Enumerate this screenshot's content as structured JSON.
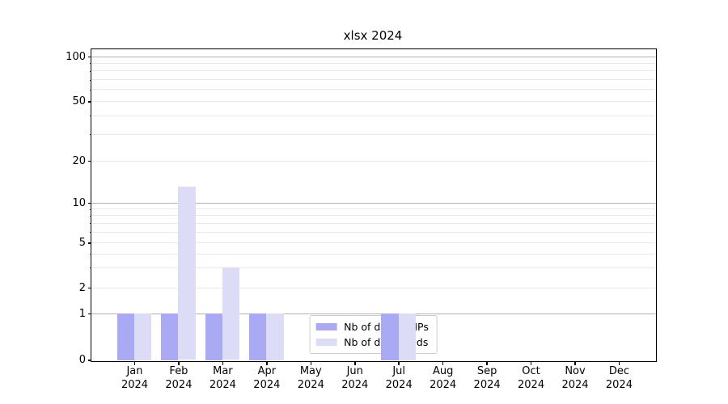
{
  "chart_data": {
    "type": "bar",
    "title": "xlsx 2024",
    "x_year": "2024",
    "categories": [
      "Jan",
      "Feb",
      "Mar",
      "Apr",
      "May",
      "Jun",
      "Jul",
      "Aug",
      "Sep",
      "Oct",
      "Nov",
      "Dec"
    ],
    "series": [
      {
        "name": "Nb of distinct IPs",
        "color": "#a9a9f4",
        "values": [
          1,
          1,
          1,
          1,
          0,
          0,
          1,
          0,
          0,
          0,
          0,
          0
        ]
      },
      {
        "name": "Nb of downloads",
        "color": "#dcdcf6",
        "values": [
          1,
          13,
          3,
          1,
          0,
          0,
          1,
          0,
          0,
          0,
          0,
          0
        ]
      }
    ],
    "y_axis": {
      "scale": "log-like",
      "range": [
        0,
        100
      ],
      "ticks": [
        100,
        50,
        20,
        10,
        5,
        2,
        1,
        0
      ],
      "tick_labels": [
        "100",
        "50",
        "20",
        "10",
        "5",
        "2",
        "1",
        "0"
      ],
      "minor_ticks": [
        3,
        4,
        6,
        7,
        8,
        9,
        30,
        40,
        60,
        70,
        80,
        90
      ],
      "major_gridlines": [
        1,
        10,
        100
      ],
      "grid": true
    },
    "legend": {
      "position": "lower center",
      "items": [
        "Nb of distinct IPs",
        "Nb of downloads"
      ]
    }
  }
}
